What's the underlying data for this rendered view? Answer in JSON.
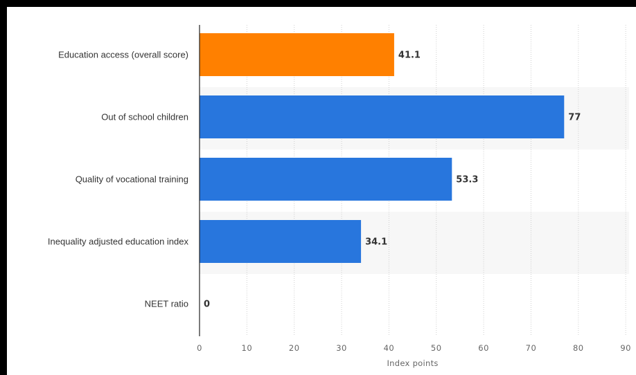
{
  "chart_data": {
    "type": "bar",
    "orientation": "horizontal",
    "categories": [
      "Education access (overall score)",
      "Out of school children",
      "Quality of vocational training",
      "Inequality adjusted education index",
      "NEET ratio"
    ],
    "values": [
      41.1,
      77,
      53.3,
      34.1,
      0
    ],
    "value_labels": [
      "41.1",
      "77",
      "53.3",
      "34.1",
      "0"
    ],
    "bar_colors": [
      "#ff8000",
      "#2876dd",
      "#2876dd",
      "#2876dd",
      "#2876dd"
    ],
    "xlabel": "Index points",
    "ylabel": "",
    "title": "",
    "xlim": [
      0,
      90
    ],
    "xticks": [
      0,
      10,
      20,
      30,
      40,
      50,
      60,
      70,
      80,
      90
    ],
    "grid": "vertical dotted",
    "legend": "none"
  }
}
